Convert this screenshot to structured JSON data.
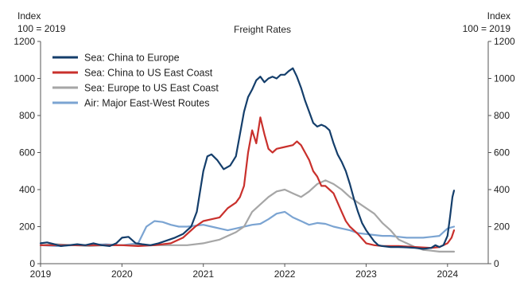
{
  "chart_data": {
    "type": "line",
    "title": "Freight Rates",
    "yaxis_left_label": [
      "Index",
      "100 = 2019"
    ],
    "yaxis_right_label": [
      "Index",
      "100 = 2019"
    ],
    "ylim": [
      0,
      1200
    ],
    "yticks": [
      0,
      200,
      400,
      600,
      800,
      1000,
      1200
    ],
    "xlim": [
      2019,
      2024.5
    ],
    "xticks": [
      2019,
      2020,
      2021,
      2022,
      2023,
      2024
    ],
    "xtick_labels": [
      "2019",
      "2020",
      "2021",
      "2022",
      "2023",
      "2024"
    ],
    "grid": false,
    "legend_position": "top-left",
    "series": [
      {
        "name": "Sea: China to Europe",
        "color": "#143e6b",
        "points": [
          [
            2019.0,
            110
          ],
          [
            2019.08,
            115
          ],
          [
            2019.17,
            105
          ],
          [
            2019.25,
            95
          ],
          [
            2019.35,
            100
          ],
          [
            2019.45,
            105
          ],
          [
            2019.55,
            100
          ],
          [
            2019.65,
            110
          ],
          [
            2019.75,
            100
          ],
          [
            2019.85,
            95
          ],
          [
            2019.93,
            110
          ],
          [
            2020.0,
            140
          ],
          [
            2020.08,
            145
          ],
          [
            2020.17,
            110
          ],
          [
            2020.25,
            105
          ],
          [
            2020.35,
            100
          ],
          [
            2020.45,
            110
          ],
          [
            2020.55,
            125
          ],
          [
            2020.65,
            140
          ],
          [
            2020.75,
            160
          ],
          [
            2020.85,
            200
          ],
          [
            2020.92,
            280
          ],
          [
            2021.0,
            500
          ],
          [
            2021.05,
            580
          ],
          [
            2021.1,
            590
          ],
          [
            2021.17,
            560
          ],
          [
            2021.25,
            510
          ],
          [
            2021.33,
            530
          ],
          [
            2021.4,
            580
          ],
          [
            2021.45,
            700
          ],
          [
            2021.5,
            820
          ],
          [
            2021.55,
            900
          ],
          [
            2021.6,
            940
          ],
          [
            2021.65,
            990
          ],
          [
            2021.7,
            1010
          ],
          [
            2021.75,
            980
          ],
          [
            2021.8,
            1000
          ],
          [
            2021.85,
            1010
          ],
          [
            2021.9,
            1000
          ],
          [
            2021.95,
            1020
          ],
          [
            2022.0,
            1020
          ],
          [
            2022.05,
            1040
          ],
          [
            2022.1,
            1055
          ],
          [
            2022.15,
            1010
          ],
          [
            2022.2,
            950
          ],
          [
            2022.25,
            880
          ],
          [
            2022.3,
            820
          ],
          [
            2022.35,
            760
          ],
          [
            2022.4,
            740
          ],
          [
            2022.45,
            750
          ],
          [
            2022.5,
            740
          ],
          [
            2022.55,
            720
          ],
          [
            2022.6,
            650
          ],
          [
            2022.65,
            590
          ],
          [
            2022.7,
            550
          ],
          [
            2022.75,
            500
          ],
          [
            2022.8,
            430
          ],
          [
            2022.85,
            350
          ],
          [
            2022.9,
            280
          ],
          [
            2022.95,
            220
          ],
          [
            2023.0,
            180
          ],
          [
            2023.05,
            150
          ],
          [
            2023.1,
            120
          ],
          [
            2023.15,
            100
          ],
          [
            2023.2,
            95
          ],
          [
            2023.3,
            90
          ],
          [
            2023.4,
            90
          ],
          [
            2023.5,
            88
          ],
          [
            2023.6,
            85
          ],
          [
            2023.7,
            80
          ],
          [
            2023.8,
            85
          ],
          [
            2023.85,
            100
          ],
          [
            2023.9,
            90
          ],
          [
            2023.95,
            100
          ],
          [
            2024.0,
            150
          ],
          [
            2024.03,
            250
          ],
          [
            2024.06,
            360
          ],
          [
            2024.08,
            395
          ]
        ]
      },
      {
        "name": "Sea: China to US East Coast",
        "color": "#c9302c",
        "points": [
          [
            2019.0,
            100
          ],
          [
            2019.2,
            100
          ],
          [
            2019.4,
            100
          ],
          [
            2019.6,
            100
          ],
          [
            2019.8,
            100
          ],
          [
            2020.0,
            100
          ],
          [
            2020.2,
            95
          ],
          [
            2020.4,
            100
          ],
          [
            2020.6,
            110
          ],
          [
            2020.75,
            140
          ],
          [
            2020.9,
            200
          ],
          [
            2021.0,
            230
          ],
          [
            2021.1,
            240
          ],
          [
            2021.2,
            250
          ],
          [
            2021.3,
            300
          ],
          [
            2021.4,
            330
          ],
          [
            2021.45,
            360
          ],
          [
            2021.5,
            420
          ],
          [
            2021.55,
            600
          ],
          [
            2021.6,
            720
          ],
          [
            2021.65,
            650
          ],
          [
            2021.7,
            790
          ],
          [
            2021.75,
            700
          ],
          [
            2021.8,
            620
          ],
          [
            2021.85,
            600
          ],
          [
            2021.9,
            620
          ],
          [
            2022.0,
            630
          ],
          [
            2022.1,
            640
          ],
          [
            2022.15,
            660
          ],
          [
            2022.2,
            640
          ],
          [
            2022.25,
            600
          ],
          [
            2022.3,
            560
          ],
          [
            2022.35,
            500
          ],
          [
            2022.4,
            470
          ],
          [
            2022.45,
            420
          ],
          [
            2022.5,
            420
          ],
          [
            2022.55,
            400
          ],
          [
            2022.6,
            380
          ],
          [
            2022.65,
            330
          ],
          [
            2022.7,
            280
          ],
          [
            2022.75,
            230
          ],
          [
            2022.8,
            200
          ],
          [
            2022.9,
            160
          ],
          [
            2023.0,
            110
          ],
          [
            2023.1,
            100
          ],
          [
            2023.2,
            95
          ],
          [
            2023.4,
            95
          ],
          [
            2023.6,
            90
          ],
          [
            2023.8,
            85
          ],
          [
            2023.9,
            90
          ],
          [
            2024.0,
            110
          ],
          [
            2024.05,
            140
          ],
          [
            2024.08,
            180
          ]
        ]
      },
      {
        "name": "Sea: Europe to US East Coast",
        "color": "#a6a6a6",
        "points": [
          [
            2019.0,
            100
          ],
          [
            2019.2,
            105
          ],
          [
            2019.4,
            100
          ],
          [
            2019.6,
            95
          ],
          [
            2019.8,
            100
          ],
          [
            2020.0,
            100
          ],
          [
            2020.2,
            100
          ],
          [
            2020.4,
            100
          ],
          [
            2020.6,
            100
          ],
          [
            2020.8,
            100
          ],
          [
            2021.0,
            110
          ],
          [
            2021.1,
            120
          ],
          [
            2021.2,
            130
          ],
          [
            2021.3,
            150
          ],
          [
            2021.4,
            170
          ],
          [
            2021.5,
            200
          ],
          [
            2021.55,
            240
          ],
          [
            2021.6,
            280
          ],
          [
            2021.7,
            320
          ],
          [
            2021.8,
            360
          ],
          [
            2021.9,
            390
          ],
          [
            2022.0,
            400
          ],
          [
            2022.1,
            380
          ],
          [
            2022.2,
            360
          ],
          [
            2022.3,
            390
          ],
          [
            2022.4,
            430
          ],
          [
            2022.5,
            450
          ],
          [
            2022.6,
            430
          ],
          [
            2022.7,
            400
          ],
          [
            2022.8,
            360
          ],
          [
            2022.9,
            330
          ],
          [
            2023.0,
            300
          ],
          [
            2023.1,
            270
          ],
          [
            2023.2,
            220
          ],
          [
            2023.3,
            180
          ],
          [
            2023.4,
            130
          ],
          [
            2023.5,
            110
          ],
          [
            2023.6,
            90
          ],
          [
            2023.7,
            75
          ],
          [
            2023.8,
            70
          ],
          [
            2023.9,
            65
          ],
          [
            2024.0,
            65
          ],
          [
            2024.08,
            65
          ]
        ]
      },
      {
        "name": "Air: Major East-West Routes",
        "color": "#7ba4d2",
        "points": [
          [
            2019.0,
            100
          ],
          [
            2019.2,
            95
          ],
          [
            2019.4,
            100
          ],
          [
            2019.6,
            100
          ],
          [
            2019.8,
            105
          ],
          [
            2020.0,
            100
          ],
          [
            2020.2,
            110
          ],
          [
            2020.3,
            200
          ],
          [
            2020.4,
            230
          ],
          [
            2020.5,
            225
          ],
          [
            2020.6,
            210
          ],
          [
            2020.7,
            200
          ],
          [
            2020.8,
            200
          ],
          [
            2020.9,
            205
          ],
          [
            2021.0,
            210
          ],
          [
            2021.1,
            200
          ],
          [
            2021.2,
            190
          ],
          [
            2021.3,
            180
          ],
          [
            2021.4,
            190
          ],
          [
            2021.5,
            200
          ],
          [
            2021.6,
            210
          ],
          [
            2021.7,
            215
          ],
          [
            2021.8,
            240
          ],
          [
            2021.9,
            270
          ],
          [
            2022.0,
            280
          ],
          [
            2022.1,
            250
          ],
          [
            2022.2,
            230
          ],
          [
            2022.3,
            210
          ],
          [
            2022.4,
            220
          ],
          [
            2022.5,
            215
          ],
          [
            2022.6,
            200
          ],
          [
            2022.7,
            190
          ],
          [
            2022.8,
            180
          ],
          [
            2022.9,
            165
          ],
          [
            2023.0,
            160
          ],
          [
            2023.1,
            155
          ],
          [
            2023.2,
            150
          ],
          [
            2023.3,
            150
          ],
          [
            2023.4,
            145
          ],
          [
            2023.5,
            140
          ],
          [
            2023.6,
            140
          ],
          [
            2023.7,
            140
          ],
          [
            2023.8,
            145
          ],
          [
            2023.9,
            150
          ],
          [
            2024.0,
            190
          ],
          [
            2024.08,
            200
          ]
        ]
      }
    ]
  }
}
